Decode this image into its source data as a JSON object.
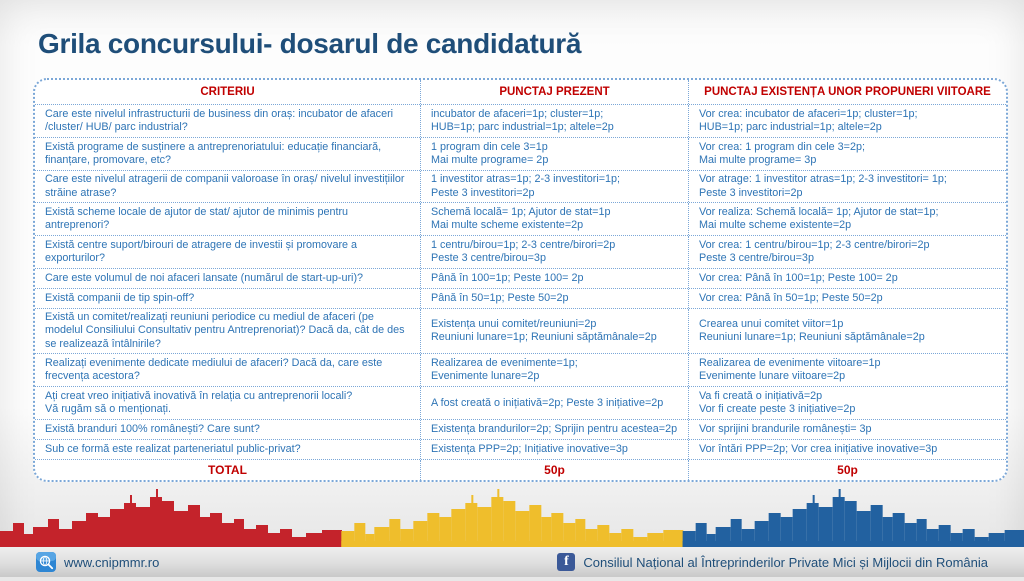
{
  "title": "Grila concursului- dosarul de candidatură",
  "table": {
    "headers": [
      "CRITERIU",
      "PUNCTAJ PREZENT",
      "PUNCTAJ EXISTENȚA UNOR PROPUNERI VIITOARE"
    ],
    "rows": [
      {
        "criteriu": "Care este nivelul infrastructurii de business din oraș: incubator de afaceri /cluster/ HUB/ parc industrial?",
        "prezent": "incubator de afaceri=1p; cluster=1p;\nHUB=1p; parc industrial=1p; altele=2p",
        "viitor": "Vor crea: incubator de afaceri=1p; cluster=1p;\nHUB=1p; parc industrial=1p; altele=2p"
      },
      {
        "criteriu": "Există programe de susținere a antreprenoriatului: educație financiară, finanțare, promovare, etc?",
        "prezent": "1 program din cele 3=1p\nMai multe programe= 2p",
        "viitor": "Vor crea: 1 program din cele 3=2p;\nMai multe programe= 3p"
      },
      {
        "criteriu": "Care este nivelul atragerii de companii valoroase în oraș/ nivelul investițiilor străine atrase?",
        "prezent": "1 investitor atras=1p; 2-3 investitori=1p;\nPeste 3 investitori=2p",
        "viitor": "Vor atrage: 1 investitor atras=1p; 2-3 investitori= 1p;\nPeste 3 investitori=2p"
      },
      {
        "criteriu": "Există scheme locale de ajutor de stat/ ajutor de minimis pentru antreprenori?",
        "prezent": "Schemă locală= 1p; Ajutor de stat=1p\nMai multe scheme existente=2p",
        "viitor": "Vor realiza: Schemă locală= 1p; Ajutor de stat=1p;\nMai multe scheme existente=2p"
      },
      {
        "criteriu": "Există centre suport/birouri de atragere de investii și promovare a exporturilor?",
        "prezent": "1 centru/birou=1p; 2-3 centre/birori=2p\nPeste 3 centre/birou=3p",
        "viitor": "Vor crea: 1 centru/birou=1p; 2-3 centre/birori=2p\nPeste 3 centre/birou=3p"
      },
      {
        "criteriu": "Care este volumul de noi afaceri lansate (numărul de start-up-uri)?",
        "prezent": "Până în 100=1p; Peste 100= 2p",
        "viitor": "Vor crea: Până în 100=1p; Peste 100= 2p"
      },
      {
        "criteriu": "Există companii de tip spin-off?",
        "prezent": "Până în 50=1p; Peste 50=2p",
        "viitor": "Vor crea: Până în 50=1p; Peste 50=2p"
      },
      {
        "criteriu": "Există un comitet/realizați reuniuni periodice cu mediul de afaceri (pe modelul Consiliului Consultativ pentru Antreprenoriat)? Dacă da, cât de des se realizează întâlnirile?",
        "prezent": "Existența unui comitet/reuniuni=2p\nReuniuni lunare=1p; Reuniuni săptămânale=2p",
        "viitor": "Crearea unui comitet viitor=1p\nReuniuni lunare=1p; Reuniuni săptămânale=2p"
      },
      {
        "criteriu": "Realizați evenimente dedicate mediului de afaceri?  Dacă da, care este frecvența acestora?",
        "prezent": "Realizarea de evenimente=1p;\nEvenimente lunare=2p",
        "viitor": "Realizarea de evenimente viitoare=1p\nEvenimente lunare viitoare=2p"
      },
      {
        "criteriu": "Ați creat vreo inițiativă inovativă în relația cu antreprenorii locali?\nVă rugăm să o menționați.",
        "prezent": "A fost creată o inițiativă=2p; Peste 3 inițiative=2p",
        "viitor": "Va fi creată o inițiativă=2p\nVor fi create peste 3 inițiative=2p"
      },
      {
        "criteriu": "Există branduri 100% românești? Care sunt?",
        "prezent": "Existența brandurilor=2p; Sprijin pentru acestea=2p",
        "viitor": "Vor sprijini brandurile românești= 3p"
      },
      {
        "criteriu": "Sub ce formă este realizat parteneriatul public-privat?",
        "prezent": "Existența PPP=2p; Inițiative inovative=3p",
        "viitor": "Vor întări PPP=2p; Vor crea inițiative inovative=3p"
      }
    ],
    "total": {
      "label": "TOTAL",
      "prezent": "50p",
      "viitor": "50p"
    }
  },
  "footer": {
    "website": "www.cnipmmr.ro",
    "facebook": "Consiliul Național al Întreprinderilor Private Mici și Mijlocii din România"
  },
  "icons": {
    "website": "globe-search-icon",
    "facebook": "facebook-icon",
    "facebook_glyph": "f"
  },
  "colors": {
    "title": "#1f4e79",
    "header_red": "#c00000",
    "body_blue": "#2e74b5",
    "border_blue": "#7ba7d7",
    "skyline_red": "#c4232b",
    "skyline_yellow": "#efbe2c",
    "skyline_blue": "#2261a0",
    "facebook_blue": "#3b5998",
    "web_icon_blue": "#2e86d3"
  }
}
